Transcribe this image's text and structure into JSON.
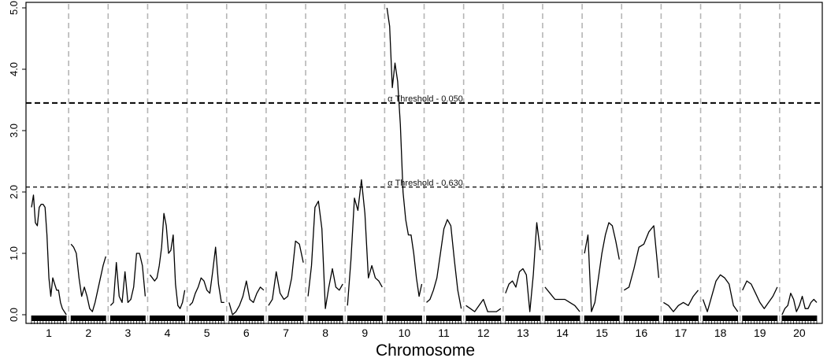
{
  "chart_data": {
    "type": "line",
    "xlabel": "Chromosome",
    "ylabel": "",
    "ylim": [
      0,
      5.0
    ],
    "y_ticks": [
      "0.0",
      "1.0",
      "2.0",
      "3.0",
      "4.0",
      "5.0"
    ],
    "chromosomes": [
      "1",
      "2",
      "3",
      "4",
      "5",
      "6",
      "7",
      "8",
      "9",
      "10",
      "11",
      "12",
      "13",
      "14",
      "15",
      "16",
      "17",
      "18",
      "19",
      "20"
    ],
    "thresholds": [
      {
        "label": "α Threshold - 0.050",
        "value": 3.45,
        "style": "heavy-dash"
      },
      {
        "label": "α Threshold - 0.630",
        "value": 2.08,
        "style": "light-dash"
      }
    ],
    "series": [
      {
        "chromosome": "1",
        "values": [
          1.75,
          1.95,
          1.5,
          1.45,
          1.75,
          1.8,
          1.8,
          1.75,
          1.3,
          0.6,
          0.3,
          0.6,
          0.5,
          0.4,
          0.4,
          0.2,
          0.1,
          0.05,
          0.0
        ]
      },
      {
        "chromosome": "2",
        "values": [
          1.15,
          1.1,
          1.0,
          0.6,
          0.3,
          0.45,
          0.3,
          0.1,
          0.05,
          0.2,
          0.4,
          0.6,
          0.8,
          0.95
        ]
      },
      {
        "chromosome": "3",
        "values": [
          0.15,
          0.2,
          0.85,
          0.3,
          0.2,
          0.7,
          0.2,
          0.25,
          0.45,
          1.0,
          1.0,
          0.8,
          0.3
        ]
      },
      {
        "chromosome": "4",
        "values": [
          0.65,
          0.6,
          0.55,
          0.6,
          0.8,
          1.1,
          1.65,
          1.45,
          1.0,
          1.05,
          1.3,
          0.5,
          0.15,
          0.1,
          0.2,
          0.4
        ]
      },
      {
        "chromosome": "5",
        "values": [
          0.15,
          0.2,
          0.35,
          0.45,
          0.6,
          0.55,
          0.4,
          0.35,
          0.7,
          1.1,
          0.5,
          0.2,
          0.2
        ]
      },
      {
        "chromosome": "6",
        "values": [
          0.2,
          0.0,
          0.05,
          0.15,
          0.3,
          0.55,
          0.25,
          0.2,
          0.35,
          0.45,
          0.4
        ]
      },
      {
        "chromosome": "7",
        "values": [
          0.15,
          0.25,
          0.7,
          0.35,
          0.25,
          0.3,
          0.6,
          1.2,
          1.15,
          0.85
        ]
      },
      {
        "chromosome": "8",
        "values": [
          0.3,
          0.8,
          1.75,
          1.85,
          1.4,
          0.1,
          0.45,
          0.75,
          0.45,
          0.4,
          0.5
        ]
      },
      {
        "chromosome": "9",
        "values": [
          0.15,
          0.9,
          1.9,
          1.7,
          2.2,
          1.65,
          0.6,
          0.8,
          0.6,
          0.55,
          0.45
        ]
      },
      {
        "chromosome": "10",
        "values": [
          5.0,
          4.7,
          3.7,
          4.1,
          3.8,
          3.1,
          2.0,
          1.55,
          1.3,
          1.3,
          1.0,
          0.6,
          0.3,
          0.5
        ]
      },
      {
        "chromosome": "11",
        "values": [
          0.2,
          0.25,
          0.4,
          0.6,
          1.0,
          1.4,
          1.55,
          1.45,
          0.9,
          0.4,
          0.1
        ]
      },
      {
        "chromosome": "12",
        "values": [
          0.15,
          0.1,
          0.05,
          0.15,
          0.25,
          0.05,
          0.05,
          0.05,
          0.1
        ]
      },
      {
        "chromosome": "13",
        "values": [
          0.35,
          0.5,
          0.55,
          0.45,
          0.7,
          0.75,
          0.65,
          0.05,
          0.65,
          1.5,
          1.05
        ]
      },
      {
        "chromosome": "14",
        "values": [
          0.45,
          0.35,
          0.25,
          0.25,
          0.25,
          0.2,
          0.15,
          0.05
        ]
      },
      {
        "chromosome": "15",
        "values": [
          1.0,
          1.3,
          0.05,
          0.2,
          0.6,
          1.0,
          1.3,
          1.5,
          1.45,
          1.2,
          0.9
        ]
      },
      {
        "chromosome": "16",
        "values": [
          0.4,
          0.45,
          0.75,
          1.1,
          1.15,
          1.35,
          1.45,
          0.6
        ]
      },
      {
        "chromosome": "17",
        "values": [
          0.2,
          0.15,
          0.05,
          0.15,
          0.2,
          0.15,
          0.3,
          0.4
        ]
      },
      {
        "chromosome": "18",
        "values": [
          0.25,
          0.05,
          0.3,
          0.55,
          0.65,
          0.6,
          0.5,
          0.15,
          0.05
        ]
      },
      {
        "chromosome": "19",
        "values": [
          0.4,
          0.55,
          0.5,
          0.35,
          0.2,
          0.1,
          0.2,
          0.3,
          0.45
        ]
      },
      {
        "chromosome": "20",
        "values": [
          0.0,
          0.1,
          0.15,
          0.35,
          0.25,
          0.05,
          0.15,
          0.3,
          0.1,
          0.1,
          0.2,
          0.25,
          0.2
        ]
      }
    ]
  }
}
